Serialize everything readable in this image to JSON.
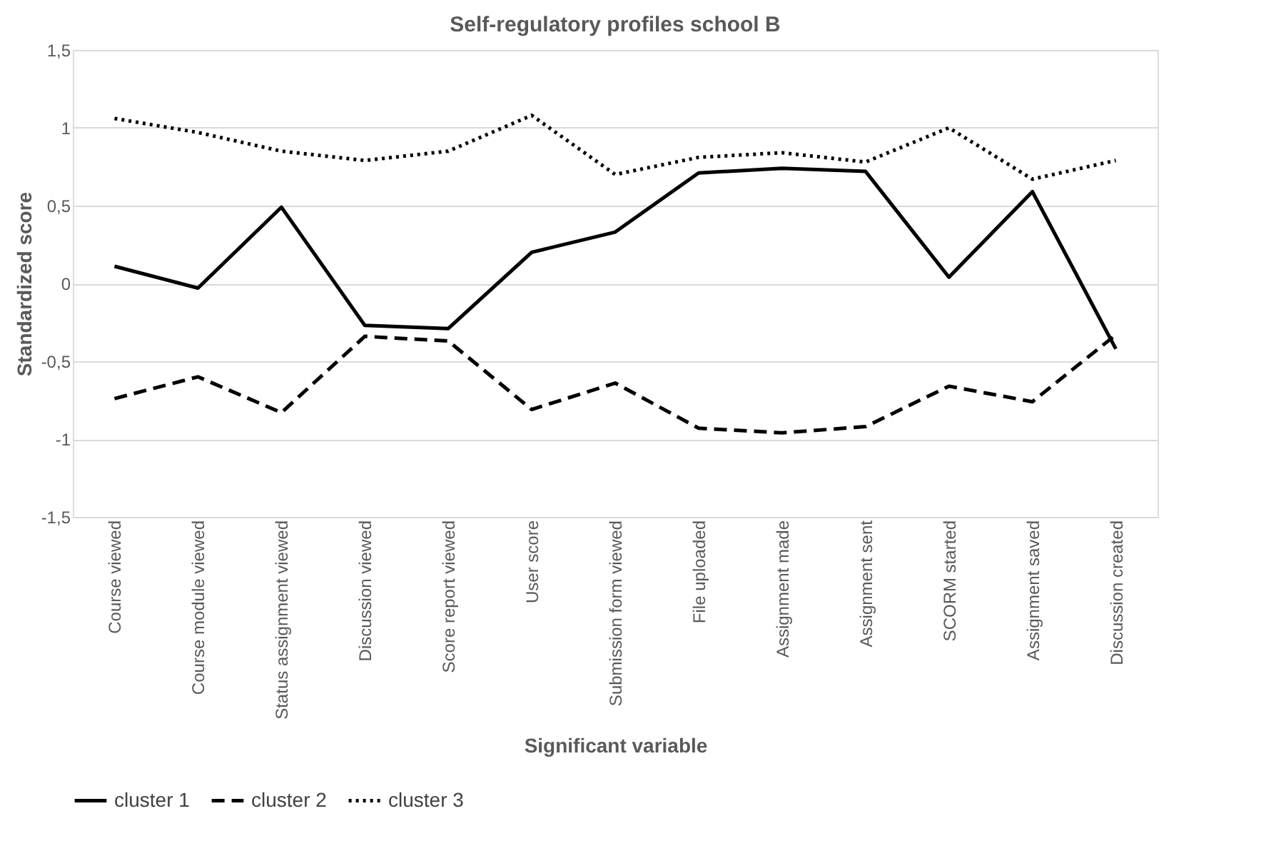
{
  "chart_data": {
    "type": "line",
    "title": "Self-regulatory profiles school B",
    "xlabel": "Significant variable",
    "ylabel": "Standardized score",
    "categories": [
      "Course viewed",
      "Course module viewed",
      "Status assignment viewed",
      "Discussion viewed",
      "Score report viewed",
      "User score",
      "Submission form viewed",
      "File uploaded",
      "Assignment made",
      "Assignment sent",
      "SCORM started",
      "Assignment saved",
      "Discussion created"
    ],
    "series": [
      {
        "name": "cluster 1",
        "color": "#000000",
        "line_style": "solid",
        "values": [
          0.11,
          -0.03,
          0.49,
          -0.27,
          -0.29,
          0.2,
          0.33,
          0.71,
          0.74,
          0.72,
          0.04,
          0.59,
          -0.42
        ]
      },
      {
        "name": "cluster 2",
        "color": "#000000",
        "line_style": "dashed",
        "values": [
          -0.74,
          -0.6,
          -0.83,
          -0.34,
          -0.37,
          -0.81,
          -0.64,
          -0.93,
          -0.96,
          -0.92,
          -0.66,
          -0.76,
          -0.33
        ]
      },
      {
        "name": "cluster 3",
        "color": "#000000",
        "line_style": "dotted",
        "values": [
          1.06,
          0.97,
          0.85,
          0.79,
          0.85,
          1.08,
          0.7,
          0.81,
          0.84,
          0.78,
          1.0,
          0.67,
          0.79
        ]
      }
    ],
    "ylim": [
      -1.5,
      1.5
    ],
    "yticks": [
      {
        "value": -1.5,
        "label": "-1,5"
      },
      -1,
      {
        "value": -0.5,
        "label": "-0,5"
      },
      0,
      {
        "value": 0.5,
        "label": "0,5"
      },
      1,
      {
        "value": 1.5,
        "label": "1,5"
      }
    ],
    "grid": "y",
    "legend": "bottom",
    "marker": "none"
  }
}
